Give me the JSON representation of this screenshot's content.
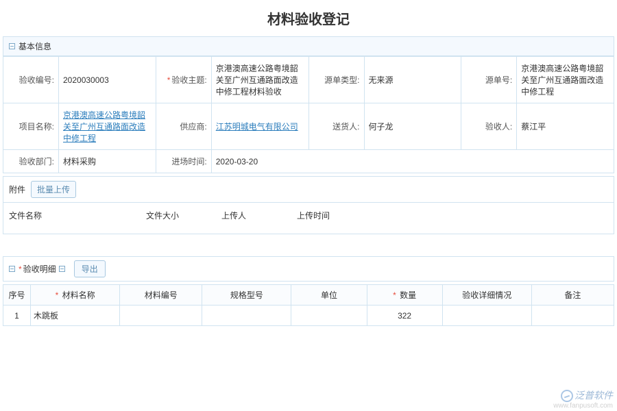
{
  "title": "材料验收登记",
  "basic": {
    "section_label": "基本信息",
    "rows": [
      [
        {
          "label": "验收编号:",
          "value": "2020030003",
          "required": false,
          "link": false
        },
        {
          "label": "验收主题:",
          "value": "京港澳高速公路粤境韶关至广州互通路面改造中修工程材料验收",
          "required": true,
          "link": false
        },
        {
          "label": "源单类型:",
          "value": "无来源",
          "required": false,
          "link": false
        },
        {
          "label": "源单号:",
          "value": "京港澳高速公路粤境韶关至广州互通路面改造中修工程",
          "required": false,
          "link": false
        }
      ],
      [
        {
          "label": "项目名称:",
          "value": "京港澳高速公路粤境韶关至广州互通路面改造中修工程",
          "required": false,
          "link": true
        },
        {
          "label": "供应商:",
          "value": "江苏明城电气有限公司",
          "required": false,
          "link": true
        },
        {
          "label": "送货人:",
          "value": "何子龙",
          "required": false,
          "link": false
        },
        {
          "label": "验收人:",
          "value": "蔡江平",
          "required": false,
          "link": false
        }
      ],
      [
        {
          "label": "验收部门:",
          "value": "材料采购",
          "required": false,
          "link": false
        },
        {
          "label": "进场时间:",
          "value": "2020-03-20",
          "required": false,
          "link": false
        },
        {
          "label": "",
          "value": "",
          "required": false,
          "link": false
        },
        {
          "label": "",
          "value": "",
          "required": false,
          "link": false
        }
      ]
    ]
  },
  "attach": {
    "label": "附件",
    "upload_btn": "批量上传",
    "cols": [
      "文件名称",
      "文件大小",
      "上传人",
      "上传时间"
    ]
  },
  "detail": {
    "label": "验收明细",
    "required": true,
    "export_btn": "导出",
    "columns": [
      {
        "label": "序号",
        "required": false,
        "width": "40"
      },
      {
        "label": "材料名称",
        "required": true,
        "width": "130"
      },
      {
        "label": "材料编号",
        "required": false,
        "width": "120"
      },
      {
        "label": "规格型号",
        "required": false,
        "width": "130"
      },
      {
        "label": "单位",
        "required": false,
        "width": "110"
      },
      {
        "label": "数量",
        "required": true,
        "width": "110"
      },
      {
        "label": "验收详细情况",
        "required": false,
        "width": "130"
      },
      {
        "label": "备注",
        "required": false,
        "width": "120"
      }
    ],
    "rows": [
      {
        "seq": "1",
        "name": "木跳板",
        "code": "",
        "spec": "",
        "unit": "",
        "qty": "322",
        "status": "",
        "remark": ""
      }
    ]
  },
  "watermark": {
    "brand": "泛普软件",
    "url": "www.fanpusoft.com"
  },
  "colors": {
    "border": "#d0e3f0",
    "header_bg": "#f4f9fe",
    "link": "#2b7dbc",
    "required": "#e74c3c"
  }
}
